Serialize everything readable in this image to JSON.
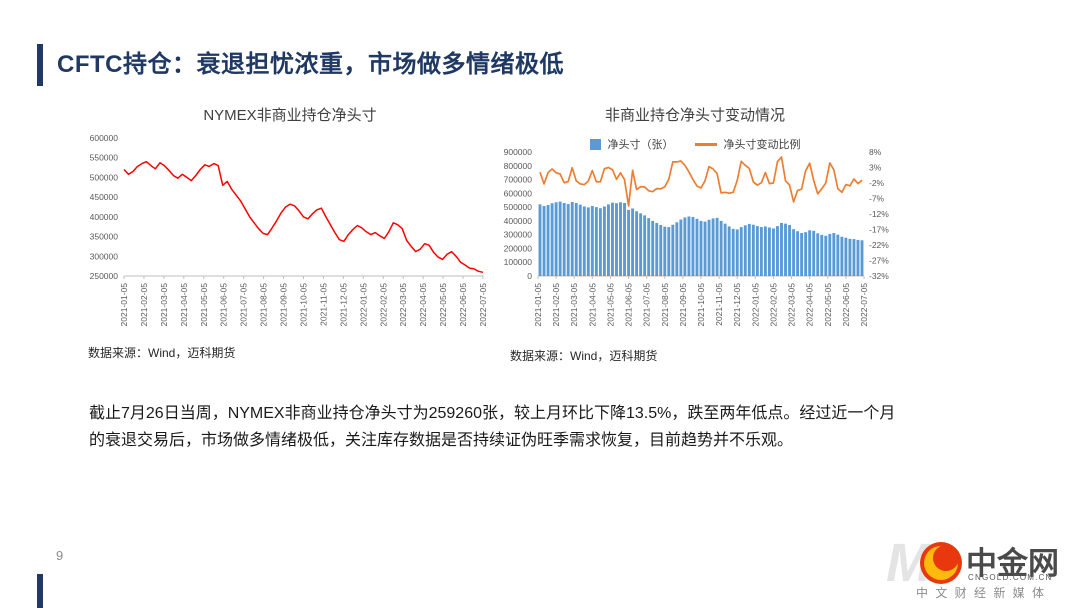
{
  "slide": {
    "title": "CFTC持仓：衰退担忧浓重，市场做多情绪极低",
    "page_number": "9",
    "body_lines": [
      "截止7月26日当周，NYMEX非商业持仓净头寸为259260张，较上月环比下降13.5%，跌至两年低点。经过近一个月",
      "的衰退交易后，市场做多情绪极低，关注库存数据是否持续证伪旺季需求恢复，目前趋势并不乐观。"
    ]
  },
  "branding": {
    "logo_text": "中金网",
    "logo_subtext": "CNGOLD.COM.CN",
    "tagline": "中 文 财 经 新 媒 体",
    "watermark_letter": "M"
  },
  "colors": {
    "accent_navy": "#1F3864",
    "line_red": "#FF0000",
    "bar_blue": "#5B9BD5",
    "line_orange": "#ED7D31",
    "axis_text": "#595959",
    "logo_red": "#E8380D",
    "logo_gold": "#FFC20E"
  },
  "chart_data": [
    {
      "type": "line",
      "title": "NYMEX非商业持仓净头寸",
      "source": "数据来源：Wind，迈科期货",
      "ylim": [
        250000,
        600000
      ],
      "y_ticks": [
        600000,
        550000,
        500000,
        450000,
        400000,
        350000,
        300000,
        250000
      ],
      "x_tick_labels": [
        "2021-01-05",
        "2021-02-05",
        "2021-03-05",
        "2021-04-05",
        "2021-05-05",
        "2021-06-05",
        "2021-07-05",
        "2021-08-05",
        "2021-09-05",
        "2021-10-05",
        "2021-11-05",
        "2021-12-05",
        "2022-01-05",
        "2022-02-05",
        "2022-03-05",
        "2022-04-05",
        "2022-05-05",
        "2022-06-05",
        "2022-07-05"
      ],
      "grid": false,
      "legend_position": "none",
      "series": [
        {
          "name": "NYMEX非商业持仓净头寸",
          "color": "#FF0000",
          "values": [
            520000,
            508000,
            515000,
            528000,
            535000,
            540000,
            530000,
            522000,
            537000,
            530000,
            518000,
            505000,
            498000,
            508000,
            500000,
            492000,
            505000,
            520000,
            532000,
            528000,
            535000,
            530000,
            480000,
            490000,
            470000,
            455000,
            440000,
            420000,
            400000,
            385000,
            370000,
            358000,
            355000,
            372000,
            390000,
            410000,
            425000,
            432000,
            428000,
            415000,
            400000,
            395000,
            408000,
            418000,
            422000,
            400000,
            380000,
            360000,
            342000,
            338000,
            355000,
            368000,
            378000,
            372000,
            362000,
            355000,
            360000,
            352000,
            345000,
            362000,
            385000,
            380000,
            370000,
            340000,
            325000,
            312000,
            318000,
            332000,
            328000,
            310000,
            298000,
            292000,
            305000,
            312000,
            300000,
            285000,
            278000,
            270000,
            268000,
            262000,
            259260
          ]
        }
      ]
    },
    {
      "type": "combo",
      "title": "非商业持仓净头寸变动情况",
      "source": "数据来源：Wind，迈科期货",
      "left_ylim": [
        0,
        900000
      ],
      "left_y_ticks": [
        900000,
        800000,
        700000,
        600000,
        500000,
        400000,
        300000,
        200000,
        100000,
        0
      ],
      "right_ylim": [
        -32,
        8
      ],
      "right_y_ticks": [
        "8%",
        "3%",
        "-2%",
        "-7%",
        "-12%",
        "-17%",
        "-22%",
        "-27%",
        "-32%"
      ],
      "x_tick_labels": [
        "2021-01-05",
        "2021-02-05",
        "2021-03-05",
        "2021-04-05",
        "2021-05-05",
        "2021-06-05",
        "2021-07-05",
        "2021-08-05",
        "2021-09-05",
        "2021-10-05",
        "2021-11-05",
        "2021-12-05",
        "2022-01-05",
        "2022-02-05",
        "2022-03-05",
        "2022-04-05",
        "2022-05-05",
        "2022-06-05",
        "2022-07-05"
      ],
      "grid": false,
      "legend_position": "top",
      "series": [
        {
          "name": "净头寸（张）",
          "type": "bar",
          "axis": "left",
          "color": "#5B9BD5",
          "values": [
            520000,
            508000,
            515000,
            528000,
            535000,
            540000,
            530000,
            522000,
            537000,
            530000,
            518000,
            505000,
            498000,
            508000,
            500000,
            492000,
            505000,
            520000,
            532000,
            528000,
            535000,
            530000,
            480000,
            490000,
            470000,
            455000,
            440000,
            420000,
            400000,
            385000,
            370000,
            358000,
            355000,
            372000,
            390000,
            410000,
            425000,
            432000,
            428000,
            415000,
            400000,
            395000,
            408000,
            418000,
            422000,
            400000,
            380000,
            360000,
            342000,
            338000,
            355000,
            368000,
            378000,
            372000,
            362000,
            355000,
            360000,
            352000,
            345000,
            362000,
            385000,
            380000,
            370000,
            340000,
            325000,
            312000,
            318000,
            332000,
            328000,
            310000,
            298000,
            292000,
            305000,
            312000,
            300000,
            285000,
            278000,
            270000,
            268000,
            262000,
            259260
          ]
        },
        {
          "name": "净头寸变动比例",
          "type": "line",
          "axis": "right",
          "color": "#ED7D31",
          "values": [
            1.5,
            -2.3,
            1.4,
            2.5,
            1.3,
            0.9,
            -1.9,
            -1.5,
            2.9,
            -1.3,
            -2.3,
            -2.5,
            -1.4,
            2.0,
            -1.6,
            -1.6,
            2.6,
            3.0,
            2.3,
            -0.8,
            1.3,
            -0.9,
            -9.4,
            2.1,
            -4.1,
            -3.2,
            -3.3,
            -4.5,
            -4.8,
            -3.8,
            -3.9,
            -3.2,
            -0.8,
            4.8,
            4.8,
            5.1,
            3.7,
            1.6,
            -0.9,
            -3.0,
            -3.6,
            -1.3,
            3.3,
            2.5,
            1.0,
            -5.2,
            -5.0,
            -5.3,
            -5.0,
            -1.2,
            5.0,
            3.7,
            2.7,
            -1.6,
            -2.7,
            -1.9,
            1.4,
            -2.2,
            -2.0,
            4.9,
            6.4,
            -1.3,
            -2.6,
            -8.1,
            -4.4,
            -4.0,
            1.9,
            4.4,
            -1.2,
            -5.5,
            -3.9,
            -2.0,
            4.5,
            2.3,
            -3.8,
            -5.0,
            -2.5,
            -2.9,
            -0.7,
            -2.2,
            -1.1
          ]
        }
      ]
    }
  ]
}
